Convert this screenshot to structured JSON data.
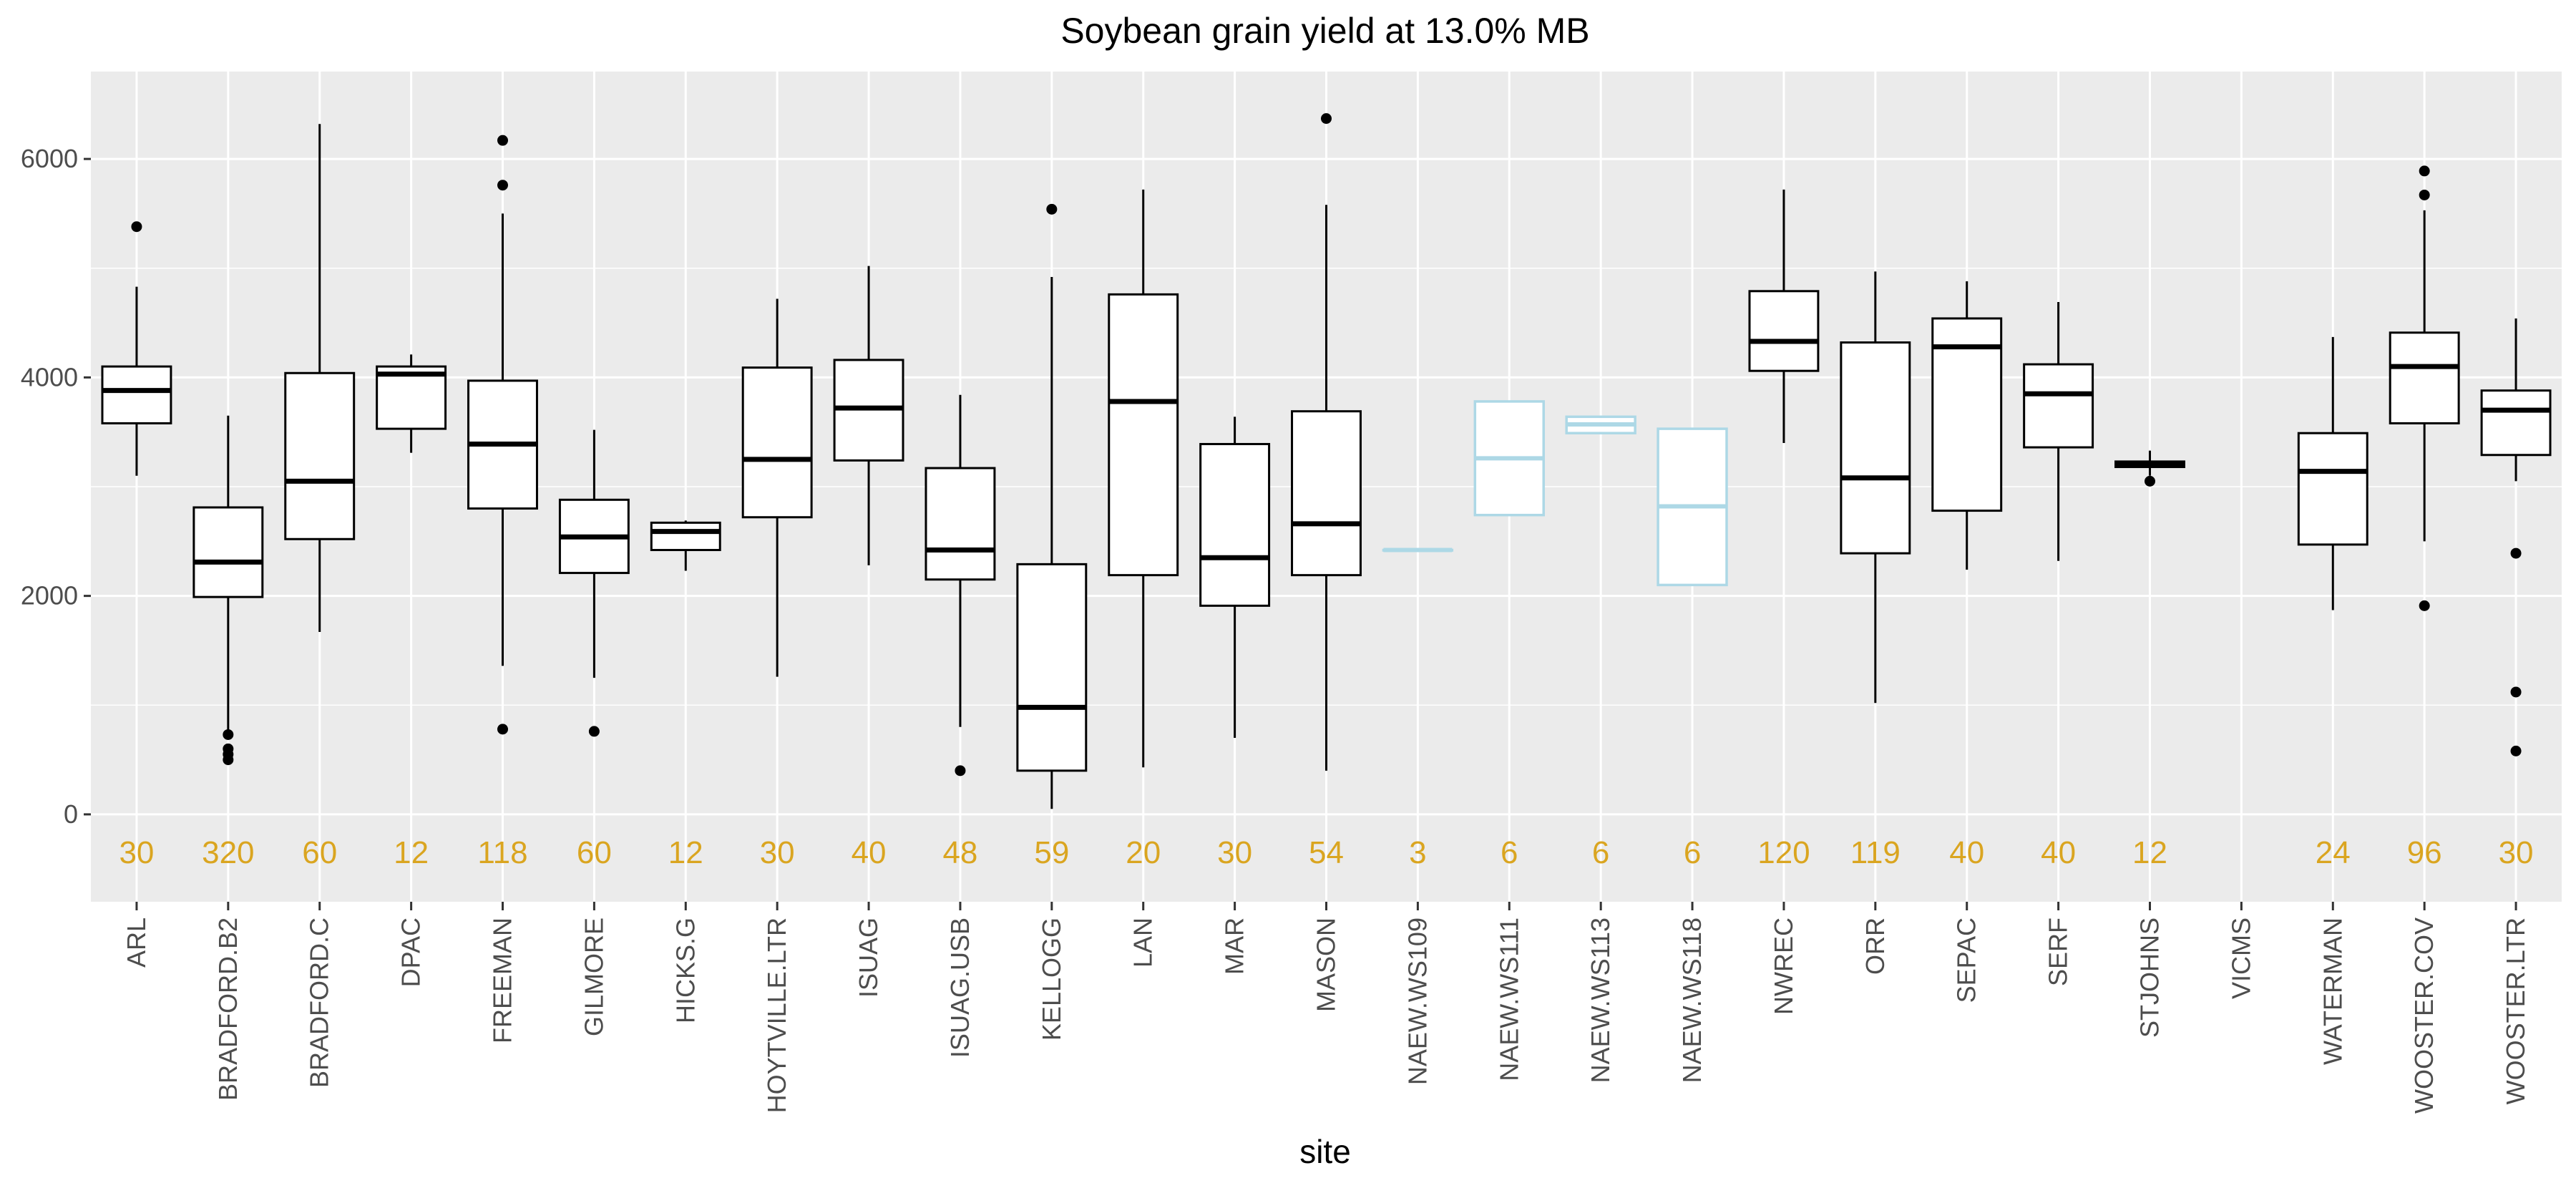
{
  "chart_data": {
    "type": "box",
    "title": "Soybean grain yield at 13.0% MB",
    "xlabel": "site",
    "ylabel": "",
    "ylim": [
      -800,
      6800
    ],
    "yticks": [
      0,
      2000,
      4000,
      6000
    ],
    "ytick_labels": [
      "0",
      "2000",
      "4000",
      "6000"
    ],
    "grid": true,
    "count_color": "#DAA520",
    "colors": {
      "default": "#000000",
      "highlight": "#ADD8E6",
      "panel": "#EBEBEB",
      "gridline": "#FFFFFF"
    },
    "categories": [
      {
        "site": "ARL",
        "count": "30",
        "color": "default",
        "min": 3100,
        "q1": 3580,
        "median": 3880,
        "q3": 4100,
        "max": 4830,
        "outliers": [
          5380
        ]
      },
      {
        "site": "BRADFORD.B2",
        "count": "320",
        "color": "default",
        "min": 700,
        "q1": 1990,
        "median": 2310,
        "q3": 2810,
        "max": 3650,
        "outliers": [
          500,
          550,
          600,
          730
        ]
      },
      {
        "site": "BRADFORD.C",
        "count": "60",
        "color": "default",
        "min": 1670,
        "q1": 2520,
        "median": 3050,
        "q3": 4040,
        "max": 6320,
        "outliers": []
      },
      {
        "site": "DPAC",
        "count": "12",
        "color": "default",
        "min": 3310,
        "q1": 3530,
        "median": 4030,
        "q3": 4100,
        "max": 4210,
        "outliers": []
      },
      {
        "site": "FREEMAN",
        "count": "118",
        "color": "default",
        "min": 1360,
        "q1": 2800,
        "median": 3390,
        "q3": 3970,
        "max": 5500,
        "outliers": [
          780,
          5760,
          6170
        ]
      },
      {
        "site": "GILMORE",
        "count": "60",
        "color": "default",
        "min": 1250,
        "q1": 2210,
        "median": 2540,
        "q3": 2880,
        "max": 3520,
        "outliers": [
          760
        ]
      },
      {
        "site": "HICKS.G",
        "count": "12",
        "color": "default",
        "min": 2230,
        "q1": 2420,
        "median": 2590,
        "q3": 2670,
        "max": 2690,
        "outliers": []
      },
      {
        "site": "HOYTVILLE.LTR",
        "count": "30",
        "color": "default",
        "min": 1260,
        "q1": 2720,
        "median": 3250,
        "q3": 4090,
        "max": 4720,
        "outliers": []
      },
      {
        "site": "ISUAG",
        "count": "40",
        "color": "default",
        "min": 2280,
        "q1": 3240,
        "median": 3720,
        "q3": 4160,
        "max": 5020,
        "outliers": []
      },
      {
        "site": "ISUAG.USB",
        "count": "48",
        "color": "default",
        "min": 800,
        "q1": 2150,
        "median": 2420,
        "q3": 3170,
        "max": 3840,
        "outliers": [
          400
        ]
      },
      {
        "site": "KELLOGG",
        "count": "59",
        "color": "default",
        "min": 50,
        "q1": 400,
        "median": 980,
        "q3": 2290,
        "max": 4920,
        "outliers": [
          5540
        ]
      },
      {
        "site": "LAN",
        "count": "20",
        "color": "default",
        "min": 430,
        "q1": 2190,
        "median": 3780,
        "q3": 4760,
        "max": 5720,
        "outliers": []
      },
      {
        "site": "MAR",
        "count": "30",
        "color": "default",
        "min": 700,
        "q1": 1910,
        "median": 2350,
        "q3": 3390,
        "max": 3640,
        "outliers": []
      },
      {
        "site": "MASON",
        "count": "54",
        "color": "default",
        "min": 400,
        "q1": 2190,
        "median": 2660,
        "q3": 3690,
        "max": 5580,
        "outliers": [
          6370
        ]
      },
      {
        "site": "NAEW.WS109",
        "count": "3",
        "color": "highlight",
        "min": 2420,
        "q1": 2420,
        "median": 2420,
        "q3": 2420,
        "max": 2420,
        "outliers": []
      },
      {
        "site": "NAEW.WS111",
        "count": "6",
        "color": "highlight",
        "min": 2740,
        "q1": 2740,
        "median": 3260,
        "q3": 3780,
        "max": 3780,
        "outliers": []
      },
      {
        "site": "NAEW.WS113",
        "count": "6",
        "color": "highlight",
        "min": 3490,
        "q1": 3490,
        "median": 3570,
        "q3": 3640,
        "max": 3640,
        "outliers": []
      },
      {
        "site": "NAEW.WS118",
        "count": "6",
        "color": "highlight",
        "min": 2100,
        "q1": 2100,
        "median": 2820,
        "q3": 3530,
        "max": 3530,
        "outliers": []
      },
      {
        "site": "NWREC",
        "count": "120",
        "color": "default",
        "min": 3400,
        "q1": 4060,
        "median": 4330,
        "q3": 4790,
        "max": 5720,
        "outliers": []
      },
      {
        "site": "ORR",
        "count": "119",
        "color": "default",
        "min": 1020,
        "q1": 2390,
        "median": 3080,
        "q3": 4320,
        "max": 4970,
        "outliers": []
      },
      {
        "site": "SEPAC",
        "count": "40",
        "color": "default",
        "min": 2240,
        "q1": 2780,
        "median": 4280,
        "q3": 4540,
        "max": 4880,
        "outliers": []
      },
      {
        "site": "SERF",
        "count": "40",
        "color": "default",
        "min": 2320,
        "q1": 3360,
        "median": 3850,
        "q3": 4120,
        "max": 4690,
        "outliers": []
      },
      {
        "site": "STJOHNS",
        "count": "12",
        "color": "default",
        "min": 3100,
        "q1": 3180,
        "median": 3210,
        "q3": 3230,
        "max": 3330,
        "outliers": [
          3050
        ]
      },
      {
        "site": "VICMS",
        "count": "",
        "color": "default",
        "min": null,
        "q1": null,
        "median": null,
        "q3": null,
        "max": null,
        "outliers": []
      },
      {
        "site": "WATERMAN",
        "count": "24",
        "color": "default",
        "min": 1870,
        "q1": 2470,
        "median": 3140,
        "q3": 3490,
        "max": 4370,
        "outliers": []
      },
      {
        "site": "WOOSTER.COV",
        "count": "96",
        "color": "default",
        "min": 2500,
        "q1": 3580,
        "median": 4100,
        "q3": 4410,
        "max": 5530,
        "outliers": [
          1910,
          5670,
          5890
        ]
      },
      {
        "site": "WOOSTER.LTR",
        "count": "30",
        "color": "default",
        "min": 3050,
        "q1": 3290,
        "median": 3700,
        "q3": 3880,
        "max": 4540,
        "outliers": [
          580,
          1120,
          2390
        ]
      }
    ]
  }
}
